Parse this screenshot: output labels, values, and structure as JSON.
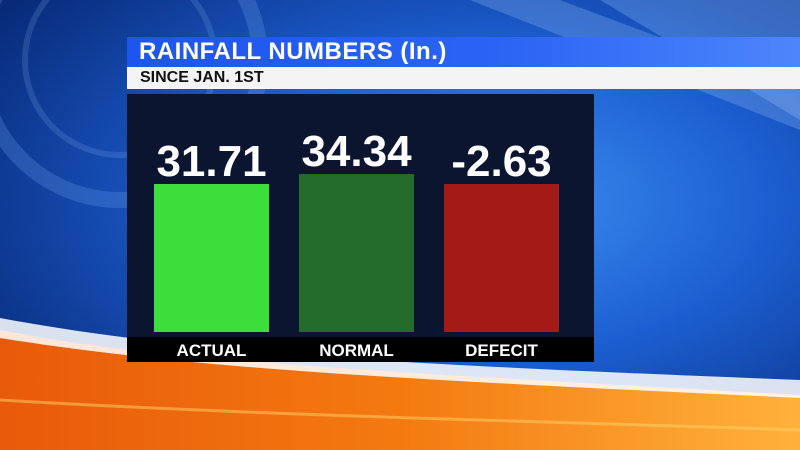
{
  "header": {
    "title": "RAINFALL NUMBERS (In.)",
    "subtitle": "SINCE JAN. 1ST"
  },
  "colors": {
    "actual": "#3bde3b",
    "normal": "#236b2a",
    "deficit": "#a31a16",
    "panel": "#0b1530",
    "title_bar": "#1f58f0"
  },
  "chart_data": {
    "type": "bar",
    "title": "RAINFALL NUMBERS (In.)",
    "subtitle": "SINCE JAN. 1ST",
    "categories": [
      "ACTUAL",
      "NORMAL",
      "DEFECIT"
    ],
    "values": [
      31.71,
      34.34,
      -2.63
    ],
    "labels": [
      "31.71",
      "34.34",
      "-2.63"
    ],
    "colors": [
      "#3bde3b",
      "#236b2a",
      "#a31a16"
    ],
    "grid": false,
    "legend": "none"
  }
}
